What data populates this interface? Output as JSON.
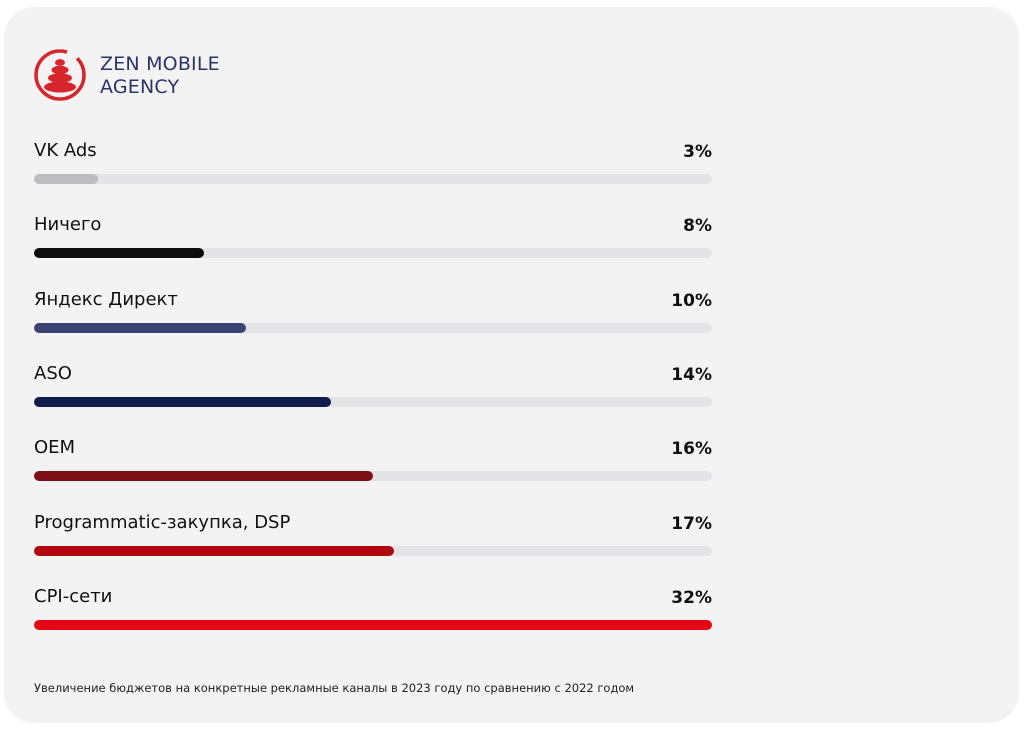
{
  "brand": {
    "line1": "ZEN MOBILE",
    "line2": "AGENCY",
    "logo_icon": "zen-stones-circle-icon",
    "accent_color": "#d7262b",
    "text_color": "#2a3468"
  },
  "chart_data": {
    "type": "bar",
    "orientation": "horizontal",
    "categories": [
      "VK Ads",
      "Ничего",
      "Яндекс Директ",
      "ASO",
      "OEM",
      "Programmatic-закупка, DSP",
      "CPI-сети"
    ],
    "values": [
      3,
      8,
      10,
      14,
      16,
      17,
      32
    ],
    "value_labels": [
      "3%",
      "8%",
      "10%",
      "14%",
      "16%",
      "17%",
      "32%"
    ],
    "colors": [
      "#bdbcbe",
      "#0d0d0d",
      "#3a4470",
      "#101b4e",
      "#7d1016",
      "#b0070e",
      "#e30613"
    ],
    "xlim": [
      0,
      32
    ],
    "grid": false,
    "legend": "none",
    "track_color": "#e4e4e6"
  },
  "caption": "Увеличение бюджетов на конкретные рекламные каналы в 2023 году по сравнению с 2022 годом"
}
